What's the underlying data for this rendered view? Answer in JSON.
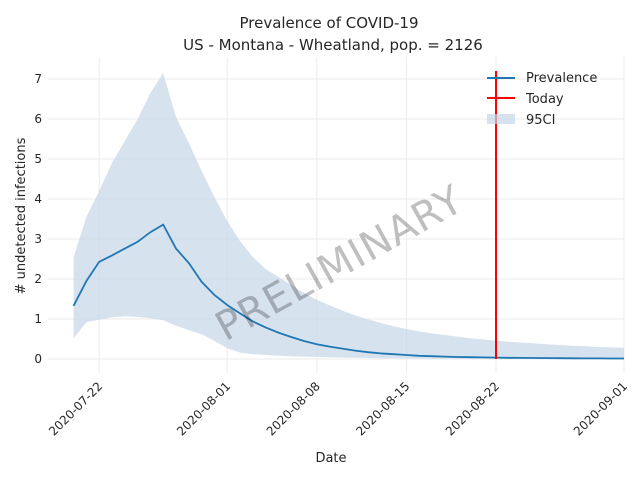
{
  "chart_data": {
    "type": "line",
    "title": "Prevalence of COVID-19",
    "subtitle": "US - Montana - Wheatland, pop. = 2126",
    "xlabel": "Date",
    "ylabel": "# undetected infections",
    "watermark": "PRELIMINARY",
    "x_tick_labels": [
      "2020-07-22",
      "2020-08-01",
      "2020-08-08",
      "2020-08-15",
      "2020-08-22",
      "2020-09-01"
    ],
    "y_tick_labels": [
      "0",
      "1",
      "2",
      "3",
      "4",
      "5",
      "6",
      "7"
    ],
    "xlim": [
      "2020-07-18",
      "2020-09-01"
    ],
    "ylim": [
      -0.35,
      7.55
    ],
    "grid": true,
    "legend_position": "top-right",
    "x": [
      "2020-07-20",
      "2020-07-21",
      "2020-07-22",
      "2020-07-23",
      "2020-07-24",
      "2020-07-25",
      "2020-07-26",
      "2020-07-27",
      "2020-07-28",
      "2020-07-29",
      "2020-07-30",
      "2020-07-31",
      "2020-08-01",
      "2020-08-02",
      "2020-08-03",
      "2020-08-04",
      "2020-08-05",
      "2020-08-06",
      "2020-08-07",
      "2020-08-08",
      "2020-08-09",
      "2020-08-10",
      "2020-08-11",
      "2020-08-12",
      "2020-08-13",
      "2020-08-14",
      "2020-08-15",
      "2020-08-16",
      "2020-08-17",
      "2020-08-18",
      "2020-08-19",
      "2020-08-20",
      "2020-08-21",
      "2020-08-22",
      "2020-08-23",
      "2020-08-24",
      "2020-08-25",
      "2020-08-26",
      "2020-08-27",
      "2020-08-28",
      "2020-08-29",
      "2020-08-30",
      "2020-08-31",
      "2020-09-01"
    ],
    "series": [
      {
        "name": "Prevalence",
        "color": "#1f77b4",
        "values": [
          1.33,
          1.95,
          2.43,
          2.59,
          2.76,
          2.93,
          3.17,
          3.36,
          2.76,
          2.4,
          1.93,
          1.6,
          1.35,
          1.14,
          0.94,
          0.79,
          0.66,
          0.55,
          0.45,
          0.37,
          0.31,
          0.26,
          0.21,
          0.17,
          0.14,
          0.12,
          0.1,
          0.08,
          0.07,
          0.06,
          0.05,
          0.045,
          0.04,
          0.035,
          0.03,
          0.027,
          0.024,
          0.022,
          0.02,
          0.018,
          0.016,
          0.015,
          0.013,
          0.012
        ]
      },
      {
        "name": "95CI",
        "color": "#c6d5e8",
        "lower": [
          0.52,
          0.92,
          0.98,
          1.04,
          1.07,
          1.05,
          1.02,
          0.97,
          0.83,
          0.72,
          0.62,
          0.45,
          0.27,
          0.16,
          0.12,
          0.1,
          0.08,
          0.07,
          0.06,
          0.05,
          0.04,
          0.035,
          0.03,
          0.025,
          0.02,
          0.02,
          0.015,
          0.012,
          0.01,
          0.01,
          0.008,
          0.007,
          0.006,
          0.005,
          0.005,
          0.004,
          0.004,
          0.003,
          0.003,
          0.003,
          0.003,
          0.002,
          0.002,
          0.002
        ],
        "upper": [
          2.55,
          3.55,
          4.2,
          4.9,
          5.45,
          6.0,
          6.65,
          7.15,
          6.05,
          5.4,
          4.7,
          4.05,
          3.45,
          2.95,
          2.55,
          2.25,
          2.05,
          1.85,
          1.65,
          1.48,
          1.34,
          1.21,
          1.09,
          0.99,
          0.9,
          0.82,
          0.75,
          0.69,
          0.64,
          0.6,
          0.56,
          0.52,
          0.49,
          0.46,
          0.43,
          0.41,
          0.39,
          0.37,
          0.35,
          0.33,
          0.32,
          0.3,
          0.29,
          0.28
        ]
      }
    ],
    "today": {
      "name": "Today",
      "x": "2020-08-22",
      "y_range": [
        0,
        7.2
      ],
      "color": "#ff0000"
    },
    "legend": [
      "Prevalence",
      "Today",
      "95CI"
    ]
  }
}
